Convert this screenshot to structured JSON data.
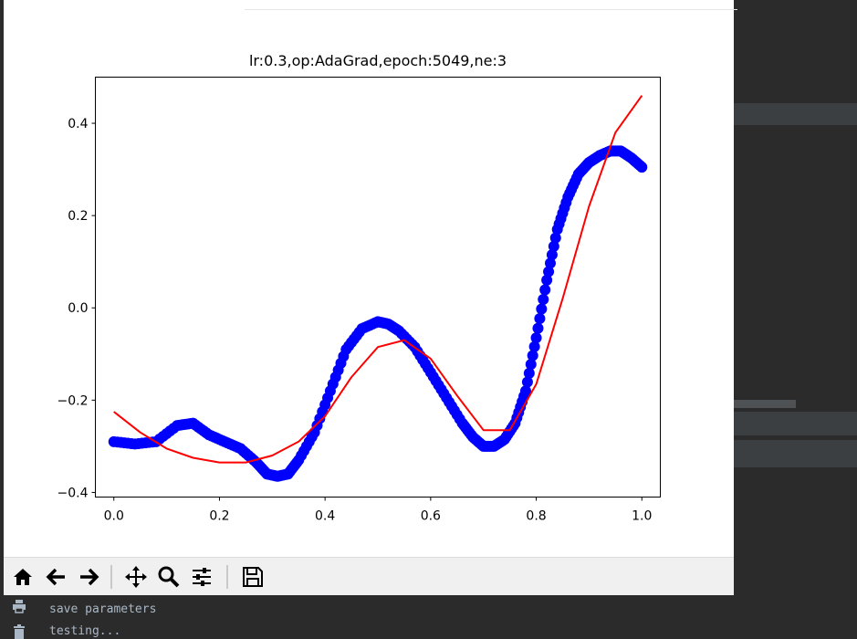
{
  "window": {
    "title": "lr:0.3,op:AdaGrad,epoch:5049,ne:3"
  },
  "chart_data": {
    "type": "scatter",
    "title": "lr:0.3,op:AdaGrad,epoch:5049,ne:3",
    "xlabel": "",
    "ylabel": "",
    "xlim": [
      -0.035,
      1.035
    ],
    "ylim": [
      -0.41,
      0.5
    ],
    "xticks": [
      "0.0",
      "0.2",
      "0.4",
      "0.6",
      "0.8",
      "1.0"
    ],
    "yticks": [
      "−0.4",
      "−0.2",
      "0.0",
      "0.2",
      "0.4"
    ],
    "grid": false,
    "series": [
      {
        "kind": "scatter",
        "color": "#0000ff",
        "x": [
          0.0,
          0.04,
          0.08,
          0.12,
          0.15,
          0.18,
          0.21,
          0.24,
          0.27,
          0.29,
          0.31,
          0.33,
          0.35,
          0.38,
          0.41,
          0.44,
          0.47,
          0.5,
          0.52,
          0.54,
          0.57,
          0.6,
          0.63,
          0.66,
          0.68,
          0.7,
          0.72,
          0.74,
          0.76,
          0.78,
          0.8,
          0.82,
          0.84,
          0.86,
          0.88,
          0.9,
          0.92,
          0.94,
          0.96,
          0.98,
          1.0
        ],
        "y": [
          -0.29,
          -0.295,
          -0.29,
          -0.255,
          -0.25,
          -0.275,
          -0.29,
          -0.305,
          -0.335,
          -0.36,
          -0.365,
          -0.36,
          -0.33,
          -0.27,
          -0.18,
          -0.09,
          -0.045,
          -0.03,
          -0.035,
          -0.05,
          -0.085,
          -0.14,
          -0.195,
          -0.25,
          -0.28,
          -0.3,
          -0.3,
          -0.285,
          -0.25,
          -0.18,
          -0.065,
          0.06,
          0.17,
          0.24,
          0.29,
          0.315,
          0.33,
          0.34,
          0.34,
          0.325,
          0.305
        ]
      },
      {
        "kind": "line",
        "color": "#ff0000",
        "x": [
          0.0,
          0.05,
          0.1,
          0.15,
          0.2,
          0.25,
          0.3,
          0.35,
          0.4,
          0.45,
          0.5,
          0.55,
          0.6,
          0.65,
          0.7,
          0.75,
          0.8,
          0.85,
          0.9,
          0.95,
          1.0
        ],
        "y": [
          -0.225,
          -0.27,
          -0.305,
          -0.325,
          -0.335,
          -0.335,
          -0.32,
          -0.29,
          -0.235,
          -0.15,
          -0.085,
          -0.07,
          -0.11,
          -0.19,
          -0.265,
          -0.265,
          -0.165,
          0.02,
          0.22,
          0.38,
          0.46
        ]
      }
    ]
  },
  "toolbar": {
    "buttons": [
      "home",
      "back",
      "forward",
      "pan",
      "zoom",
      "configure-subplots",
      "save"
    ]
  },
  "console": {
    "lines": [
      "save parameters",
      "testing..."
    ]
  }
}
